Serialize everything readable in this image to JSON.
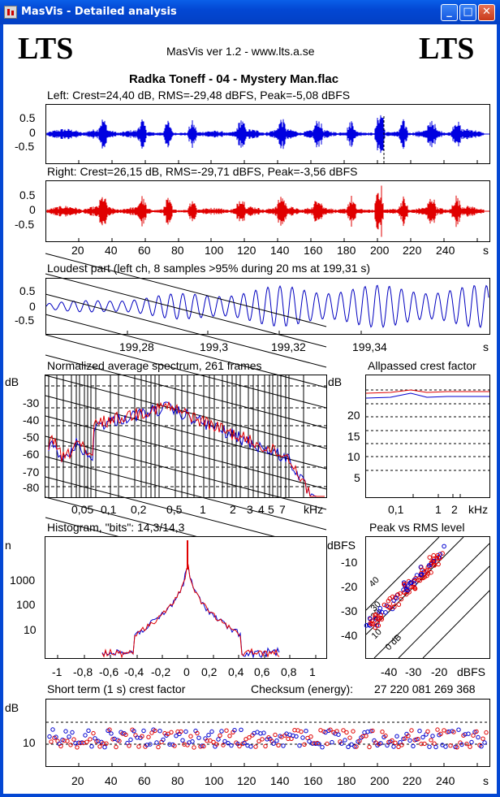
{
  "window": {
    "title": "MasVis - Detailed analysis"
  },
  "header": {
    "logo_left": "LTS",
    "logo_right": "LTS",
    "subtitle": "MasVis ver 1.2 - www.lts.a.se",
    "track": "Radka Toneff - 04 - Mystery Man.flac"
  },
  "left_channel": {
    "caption": "Left: Crest=24,40 dB, RMS=-29,48 dBFS, Peak=-5,08 dBFS",
    "yticks": [
      "0.5",
      "0",
      "-0.5"
    ],
    "color": "#0000e0"
  },
  "right_channel": {
    "caption": "Right: Crest=26,15 dB, RMS=-29,71 dBFS, Peak=-3,56 dBFS",
    "yticks": [
      "0.5",
      "0",
      "-0.5"
    ],
    "color": "#e00000",
    "xticks": [
      "20",
      "40",
      "60",
      "80",
      "100",
      "120",
      "140",
      "160",
      "180",
      "200",
      "220",
      "240",
      "s"
    ]
  },
  "loudest": {
    "caption": "Loudest part (left  ch, 8 samples >95% during 20 ms at 199,31 s)",
    "yticks": [
      "0.5",
      "0",
      "-0.5"
    ],
    "xticks": [
      "199,28",
      "199,3",
      "199,32",
      "199,34",
      "s"
    ]
  },
  "spectrum": {
    "caption": "Normalized average spectrum, 261 frames",
    "yunit": "dB",
    "yticks": [
      "-30",
      "-40",
      "-50",
      "-60",
      "-70",
      "-80"
    ],
    "xticks": [
      "0,05",
      "0,1",
      "0,2",
      "0,5",
      "1",
      "2",
      "3",
      "4",
      "5",
      "7",
      "kHz"
    ]
  },
  "allpass": {
    "caption": "Allpassed crest factor",
    "yunit": "dB",
    "yticks": [
      "20",
      "15",
      "10",
      "5"
    ],
    "xticks": [
      "0,1",
      "1",
      "2",
      "kHz"
    ]
  },
  "histogram": {
    "caption": "Histogram, \"bits\": 14,3/14,3",
    "yunit": "n",
    "yticks": [
      "1000",
      "100",
      "10"
    ],
    "xticks": [
      "-1",
      "-0,8",
      "-0,6",
      "-0,4",
      "-0,2",
      "0",
      "0,2",
      "0,4",
      "0,6",
      "0,8",
      "1"
    ]
  },
  "peak_rms": {
    "caption": "Peak vs RMS level",
    "yunit": "dBFS",
    "yticks": [
      "-10",
      "-20",
      "-30",
      "-40"
    ],
    "xticks": [
      "-40",
      "-30",
      "-20",
      "dBFS"
    ],
    "diag_labels": [
      "40",
      "30",
      "20",
      "10",
      "0 dB"
    ]
  },
  "short_term": {
    "caption": "Short term (1 s) crest factor",
    "checksum_label": "Checksum (energy):",
    "checksum_value": "27 220 081 269 368",
    "yunit": "dB",
    "yticks": [
      "10"
    ],
    "xticks": [
      "20",
      "40",
      "60",
      "80",
      "100",
      "120",
      "140",
      "160",
      "180",
      "200",
      "220",
      "240",
      "s"
    ]
  }
}
